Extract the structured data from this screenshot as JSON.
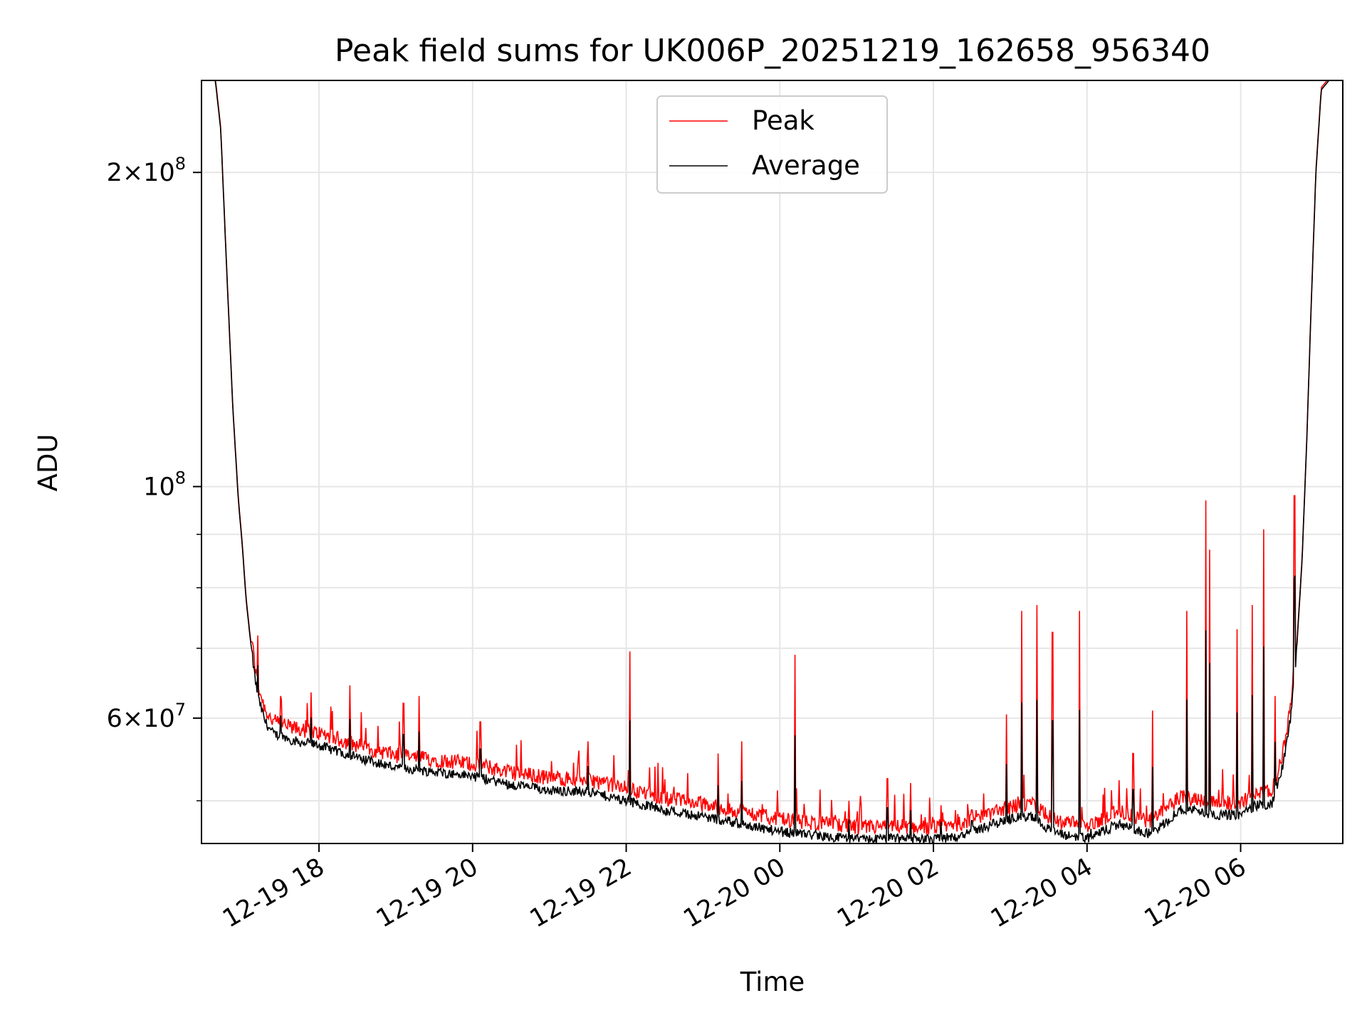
{
  "chart_data": {
    "type": "line",
    "title": "Peak field sums for UK006P_20251219_162658_956340",
    "xlabel": "Time",
    "ylabel": "ADU",
    "yscale": "log",
    "ylim": [
      45500000,
      245000000
    ],
    "xlim_hours": [
      16.47,
      31.33
    ],
    "grid": true,
    "legend": {
      "placement": "top-center",
      "entries": [
        "Peak",
        "Average"
      ]
    },
    "x_ticks": [
      {
        "label": "12-19 18",
        "hour": 18
      },
      {
        "label": "12-19 20",
        "hour": 20
      },
      {
        "label": "12-19 22",
        "hour": 22
      },
      {
        "label": "12-20 00",
        "hour": 24
      },
      {
        "label": "12-20 02",
        "hour": 26
      },
      {
        "label": "12-20 04",
        "hour": 28
      },
      {
        "label": "12-20 06",
        "hour": 30
      }
    ],
    "y_major_ticks": [
      {
        "value": 60000000,
        "base": "6",
        "exp": "7"
      },
      {
        "value": 100000000,
        "base": "",
        "exp": "8"
      },
      {
        "value": 200000000,
        "base": "2",
        "exp": "8"
      }
    ],
    "y_minor_ticks": [
      50000000,
      70000000,
      80000000,
      90000000
    ],
    "average_series": {
      "name": "Average",
      "color": "#000000",
      "hours": [
        16.47,
        16.65,
        16.72,
        16.8,
        16.88,
        16.95,
        17.0,
        17.05,
        17.1,
        17.15,
        17.2,
        17.3,
        17.4,
        17.55,
        17.7,
        18.0,
        18.5,
        19.0,
        19.5,
        20.0,
        20.5,
        21.0,
        21.5,
        22.0,
        22.5,
        23.0,
        23.5,
        24.0,
        24.5,
        25.0,
        25.5,
        26.0,
        26.3,
        26.6,
        26.9,
        27.1,
        27.3,
        27.5,
        27.7,
        27.9,
        28.05,
        28.2,
        28.4,
        28.6,
        28.8,
        29.0,
        29.2,
        29.4,
        29.6,
        29.8,
        30.0,
        30.2,
        30.4,
        30.55,
        30.65,
        30.72,
        30.8,
        30.86,
        30.92,
        30.98,
        31.05,
        31.15,
        31.33
      ],
      "values": [
        245000000,
        245000000,
        220000000,
        160000000,
        118000000,
        97000000,
        88000000,
        78000000,
        72000000,
        67000000,
        63000000,
        59500000,
        58000000,
        57500000,
        57000000,
        56500000,
        55000000,
        53800000,
        53300000,
        52800000,
        51800000,
        51200000,
        51000000,
        50000000,
        49000000,
        48300000,
        47500000,
        46700000,
        46300000,
        45900000,
        46000000,
        45900000,
        46200000,
        47000000,
        47800000,
        48300000,
        48200000,
        47000000,
        46300000,
        46200000,
        46000000,
        46700000,
        47500000,
        47000000,
        46500000,
        47500000,
        49000000,
        49000000,
        48500000,
        48500000,
        48500000,
        49500000,
        49500000,
        54000000,
        60000000,
        68000000,
        85000000,
        110000000,
        150000000,
        200000000,
        240000000,
        245000000,
        245000000
      ]
    },
    "peak_series": {
      "name": "Peak",
      "color": "#ff0000",
      "note": "Tracks the average with a positive envelope and occasional spikes",
      "spikes": [
        {
          "hour": 17.2,
          "value": 72000000
        },
        {
          "hour": 17.5,
          "value": 63000000
        },
        {
          "hour": 17.9,
          "value": 63500000
        },
        {
          "hour": 18.4,
          "value": 64500000
        },
        {
          "hour": 19.1,
          "value": 62000000
        },
        {
          "hour": 19.3,
          "value": 63000000
        },
        {
          "hour": 20.1,
          "value": 59500000
        },
        {
          "hour": 21.5,
          "value": 57000000
        },
        {
          "hour": 22.05,
          "value": 69500000
        },
        {
          "hour": 23.2,
          "value": 55500000
        },
        {
          "hour": 23.5,
          "value": 57000000
        },
        {
          "hour": 24.2,
          "value": 69000000
        },
        {
          "hour": 24.9,
          "value": 50000000
        },
        {
          "hour": 25.4,
          "value": 52500000
        },
        {
          "hour": 25.7,
          "value": 52000000
        },
        {
          "hour": 26.1,
          "value": 49500000
        },
        {
          "hour": 26.5,
          "value": 49000000
        },
        {
          "hour": 26.95,
          "value": 60500000
        },
        {
          "hour": 27.15,
          "value": 76000000
        },
        {
          "hour": 27.35,
          "value": 77000000
        },
        {
          "hour": 27.55,
          "value": 72500000
        },
        {
          "hour": 27.9,
          "value": 76000000
        },
        {
          "hour": 28.05,
          "value": 48000000
        },
        {
          "hour": 28.6,
          "value": 55500000
        },
        {
          "hour": 28.85,
          "value": 61000000
        },
        {
          "hour": 29.3,
          "value": 76000000
        },
        {
          "hour": 29.55,
          "value": 97000000
        },
        {
          "hour": 29.6,
          "value": 87000000
        },
        {
          "hour": 29.95,
          "value": 73000000
        },
        {
          "hour": 30.15,
          "value": 77000000
        },
        {
          "hour": 30.3,
          "value": 91000000
        },
        {
          "hour": 30.45,
          "value": 63000000
        },
        {
          "hour": 30.7,
          "value": 98000000
        }
      ]
    }
  }
}
